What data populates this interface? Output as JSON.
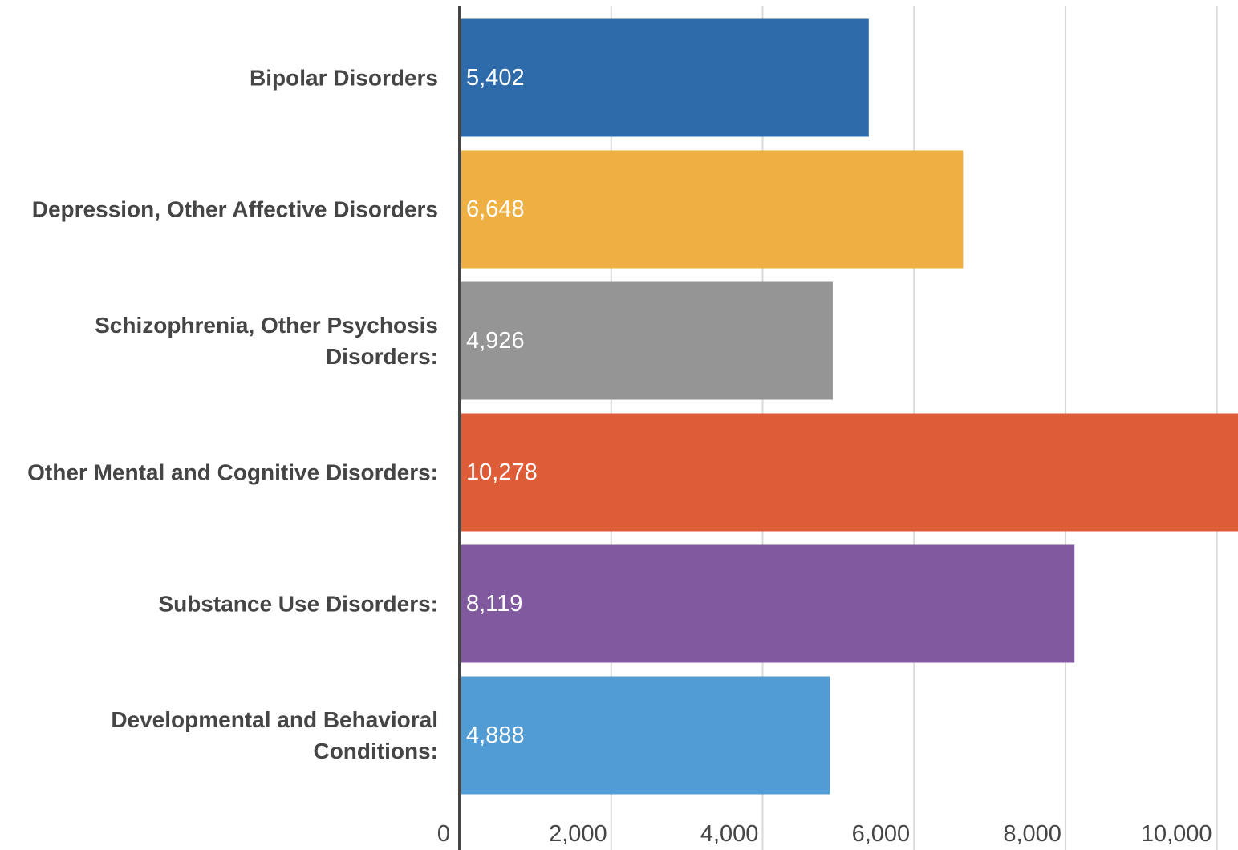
{
  "chart_data": {
    "type": "bar",
    "orientation": "horizontal",
    "categories": [
      "Bipolar Disorders",
      "Depression, Other Affective Disorders",
      "Schizophrenia, Other Psychosis Disorders:",
      "Other Mental and Cognitive Disorders:",
      "Substance Use Disorders:",
      "Developmental and Behavioral Conditions:"
    ],
    "values": [
      5402,
      6648,
      4926,
      10278,
      8119,
      4888
    ],
    "value_labels": [
      "5,402",
      "6,648",
      "4,926",
      "10,278",
      "8,119",
      "4,888"
    ],
    "bar_colors": [
      "#2E6BAA",
      "#EFB043",
      "#959596",
      "#DE5D38",
      "#81599F",
      "#519CD5"
    ],
    "xlim": [
      0,
      10278
    ],
    "x_ticks": [
      0,
      2000,
      4000,
      6000,
      8000,
      10000
    ],
    "x_tick_labels": [
      "0",
      "2,000",
      "4,000",
      "6,000",
      "8,000",
      "10,000"
    ],
    "grid": true,
    "title": "",
    "xlabel": "",
    "ylabel": ""
  }
}
